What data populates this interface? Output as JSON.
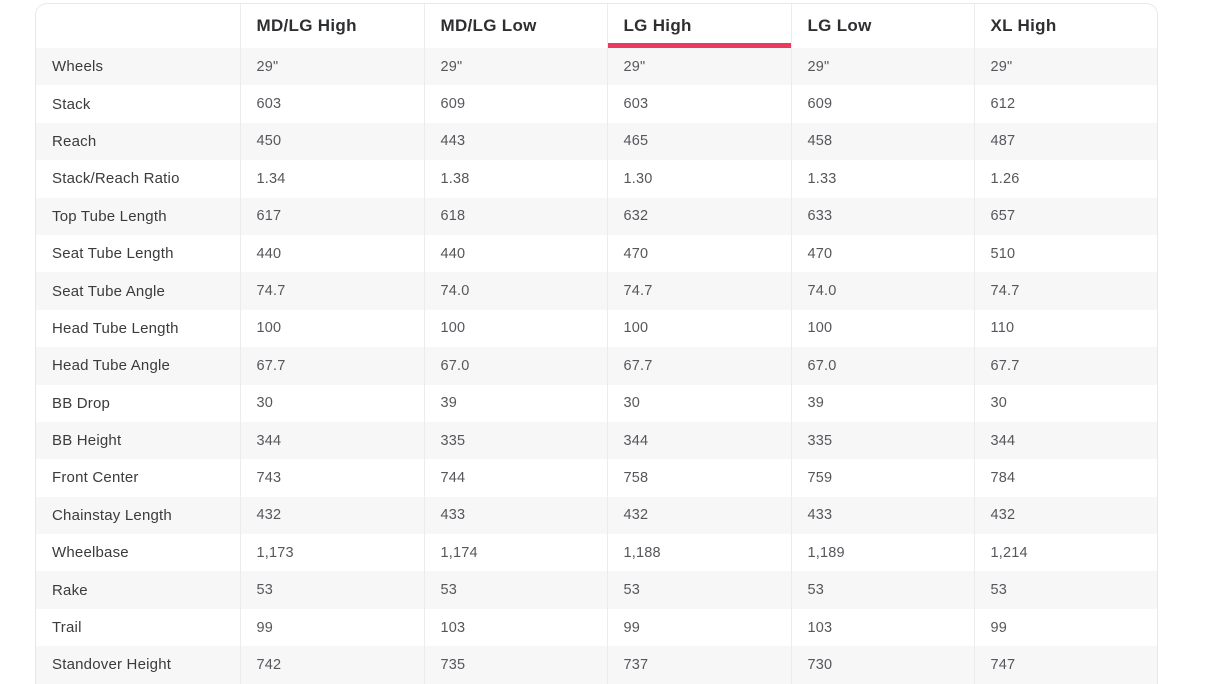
{
  "theme": {
    "accent": "#ec3a5e",
    "stripe": "#f7f7f8",
    "col_border": "#ececec",
    "outer_border": "#e8e8e8",
    "header_text": "#2e2f31",
    "label_text": "#3a3b3d",
    "value_text": "#56575b"
  },
  "table": {
    "columns": [
      "MD/LG High",
      "MD/LG Low",
      "LG High",
      "LG Low",
      "XL High"
    ],
    "active_column_index": 2,
    "active_column": "LG High",
    "rows": [
      {
        "label": "Wheels",
        "values": [
          "29\"",
          "29\"",
          "29\"",
          "29\"",
          "29\""
        ]
      },
      {
        "label": "Stack",
        "values": [
          "603",
          "609",
          "603",
          "609",
          "612"
        ]
      },
      {
        "label": "Reach",
        "values": [
          "450",
          "443",
          "465",
          "458",
          "487"
        ]
      },
      {
        "label": "Stack/Reach Ratio",
        "values": [
          "1.34",
          "1.38",
          "1.30",
          "1.33",
          "1.26"
        ]
      },
      {
        "label": "Top Tube Length",
        "values": [
          "617",
          "618",
          "632",
          "633",
          "657"
        ]
      },
      {
        "label": "Seat Tube Length",
        "values": [
          "440",
          "440",
          "470",
          "470",
          "510"
        ]
      },
      {
        "label": "Seat Tube Angle",
        "values": [
          "74.7",
          "74.0",
          "74.7",
          "74.0",
          "74.7"
        ]
      },
      {
        "label": "Head Tube Length",
        "values": [
          "100",
          "100",
          "100",
          "100",
          "110"
        ]
      },
      {
        "label": "Head Tube Angle",
        "values": [
          "67.7",
          "67.0",
          "67.7",
          "67.0",
          "67.7"
        ]
      },
      {
        "label": "BB Drop",
        "values": [
          "30",
          "39",
          "30",
          "39",
          "30"
        ]
      },
      {
        "label": "BB Height",
        "values": [
          "344",
          "335",
          "344",
          "335",
          "344"
        ]
      },
      {
        "label": "Front Center",
        "values": [
          "743",
          "744",
          "758",
          "759",
          "784"
        ]
      },
      {
        "label": "Chainstay Length",
        "values": [
          "432",
          "433",
          "432",
          "433",
          "432"
        ]
      },
      {
        "label": "Wheelbase",
        "values": [
          "1,173",
          "1,174",
          "1,188",
          "1,189",
          "1,214"
        ]
      },
      {
        "label": "Rake",
        "values": [
          "53",
          "53",
          "53",
          "53",
          "53"
        ]
      },
      {
        "label": "Trail",
        "values": [
          "99",
          "103",
          "99",
          "103",
          "99"
        ]
      },
      {
        "label": "Standover Height",
        "values": [
          "742",
          "735",
          "737",
          "730",
          "747"
        ]
      }
    ]
  }
}
